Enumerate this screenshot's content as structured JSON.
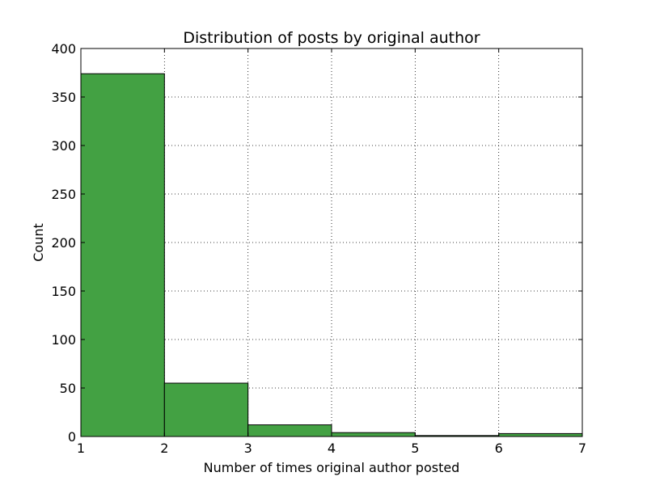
{
  "chart_data": {
    "type": "bar",
    "title": "Distribution of posts by original author",
    "xlabel": "Number of times original author posted",
    "ylabel": "Count",
    "bins": [
      [
        1,
        2
      ],
      [
        2,
        3
      ],
      [
        3,
        4
      ],
      [
        4,
        5
      ],
      [
        5,
        6
      ],
      [
        6,
        7
      ]
    ],
    "values": [
      374,
      55,
      12,
      4,
      1,
      3
    ],
    "xlim": [
      1,
      7
    ],
    "ylim": [
      0,
      400
    ],
    "xticks": [
      1,
      2,
      3,
      4,
      5,
      6,
      7
    ],
    "yticks": [
      0,
      50,
      100,
      150,
      200,
      250,
      300,
      350,
      400
    ],
    "grid": true,
    "bar_color": "#43a143"
  }
}
